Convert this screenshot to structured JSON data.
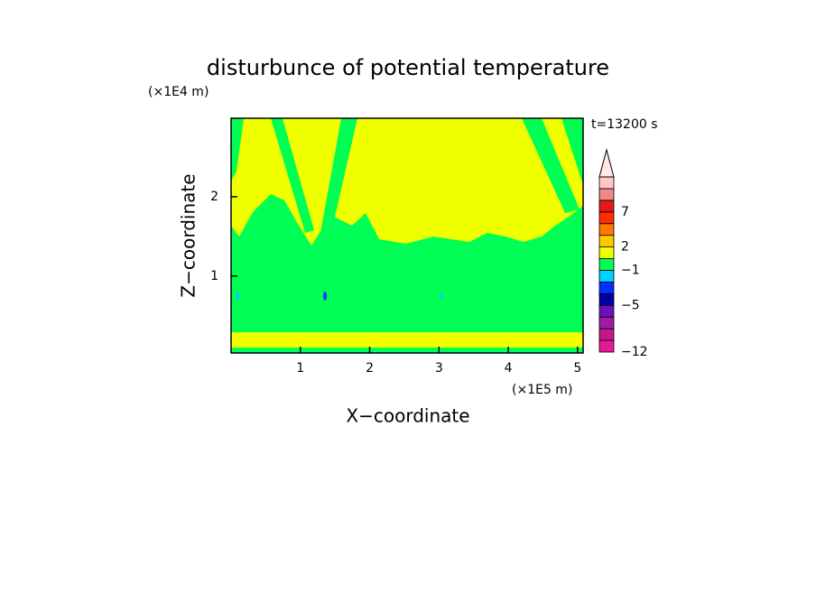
{
  "chart_data": {
    "type": "contour",
    "title": "disturbunce of potential temperature",
    "x_label": "X−coordinate",
    "y_label": "Z−coordinate",
    "x_unit": "(×1E5 m)",
    "y_unit": "(×1E4 m)",
    "annotation": "t=13200 s",
    "xlim": [
      0,
      5.08
    ],
    "xticks": [
      1,
      2,
      3,
      4,
      5
    ],
    "ylim": [
      0.03,
      2.99
    ],
    "yticks": [
      1,
      2
    ],
    "colorbar": {
      "colors": [
        "#e8189a",
        "#c8158c",
        "#a01aa8",
        "#7010b8",
        "#0000a8",
        "#0030ff",
        "#00d0ff",
        "#00ff55",
        "#f0ff00",
        "#ffc800",
        "#ff7800",
        "#ff3000",
        "#e81818",
        "#f08888",
        "#ffc8c8"
      ],
      "extend_color": "#ffe8e8",
      "labels": [
        {
          "index": 0,
          "label": "−12"
        },
        {
          "index": 4,
          "label": "−5"
        },
        {
          "index": 7,
          "label": "−1"
        },
        {
          "index": 9,
          "label": "2"
        },
        {
          "index": 12,
          "label": "7"
        }
      ]
    }
  }
}
